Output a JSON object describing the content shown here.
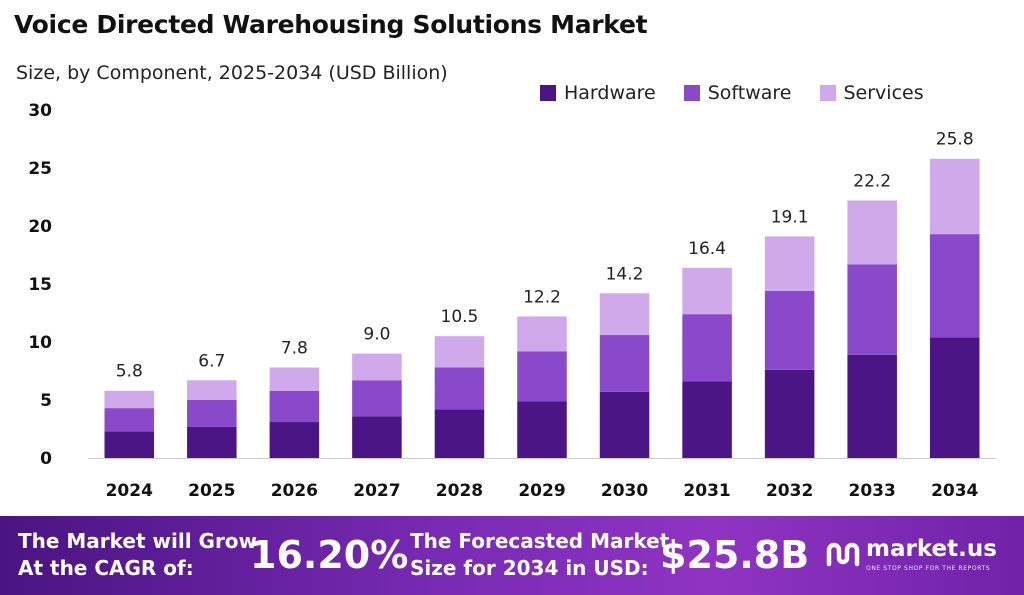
{
  "chart_data": {
    "type": "bar",
    "stacked": true,
    "title": "Voice Directed Warehousing Solutions Market",
    "subtitle": "Size, by Component, 2025-2034 (USD Billion)",
    "categories": [
      "2024",
      "2025",
      "2026",
      "2027",
      "2028",
      "2029",
      "2030",
      "2031",
      "2032",
      "2033",
      "2034"
    ],
    "series": [
      {
        "name": "Hardware",
        "color": "#4c1586",
        "values": [
          2.3,
          2.7,
          3.1,
          3.6,
          4.2,
          4.9,
          5.7,
          6.6,
          7.6,
          8.9,
          10.4
        ]
      },
      {
        "name": "Software",
        "color": "#8a48ca",
        "values": [
          2.0,
          2.3,
          2.7,
          3.1,
          3.6,
          4.3,
          4.9,
          5.8,
          6.8,
          7.8,
          8.9
        ]
      },
      {
        "name": "Services",
        "color": "#cfa9ea",
        "values": [
          1.5,
          1.7,
          2.0,
          2.3,
          2.7,
          3.0,
          3.6,
          4.0,
          4.7,
          5.5,
          6.5
        ]
      }
    ],
    "totals": [
      "5.8",
      "6.7",
      "7.8",
      "9.0",
      "10.5",
      "12.2",
      "14.2",
      "16.4",
      "19.1",
      "22.2",
      "25.8"
    ],
    "ylim": [
      0,
      30
    ],
    "yticks": [
      0,
      5,
      10,
      15,
      20,
      25,
      30
    ],
    "grid": false,
    "legend_position": "top-right"
  },
  "footer": {
    "grow_line1": "The Market will Grow",
    "grow_line2": "At the CAGR of:",
    "cagr": "16.20%",
    "forecast_line1": "The Forecasted Market",
    "forecast_line2": "Size for 2034 in USD:",
    "size": "$25.8B",
    "brand_name": "market.us",
    "brand_tagline": "ONE STOP SHOP FOR THE REPORTS"
  }
}
